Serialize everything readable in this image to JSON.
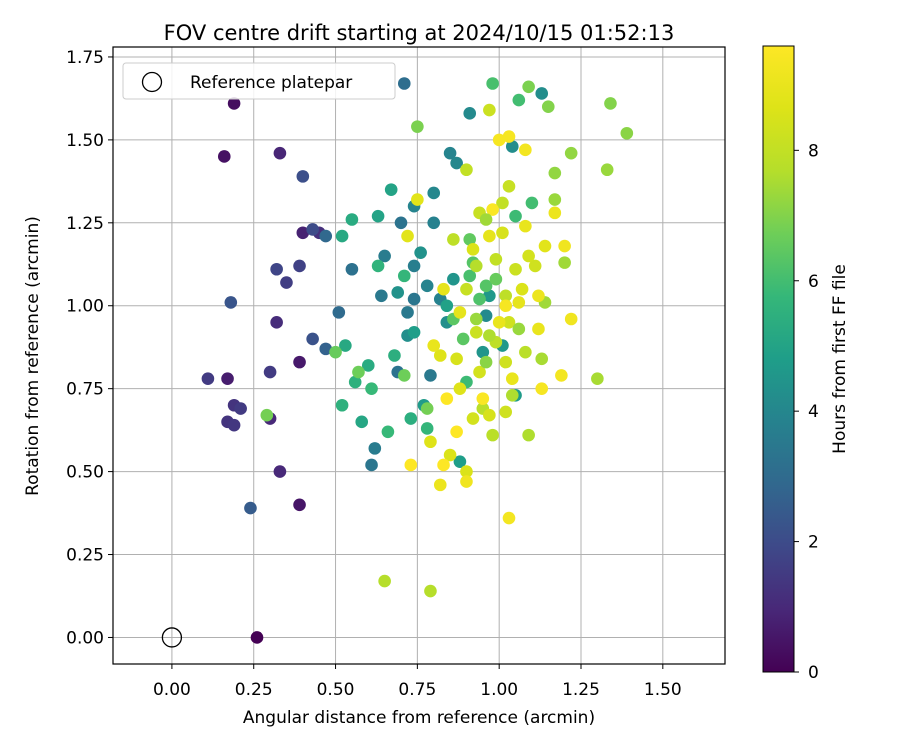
{
  "chart_data": {
    "type": "scatter",
    "title": "FOV centre drift starting at 2024/10/15 01:52:13",
    "xlabel": "Angular distance from reference (arcmin)",
    "ylabel": "Rotation from reference (arcmin)",
    "xlim": [
      -0.18,
      1.69
    ],
    "ylim": [
      -0.08,
      1.78
    ],
    "xticks": [
      "0.00",
      "0.25",
      "0.50",
      "0.75",
      "1.00",
      "1.25",
      "1.50"
    ],
    "yticks": [
      "0.00",
      "0.25",
      "0.50",
      "0.75",
      "1.00",
      "1.25",
      "1.50",
      "1.75"
    ],
    "grid": true,
    "legend": {
      "placement": "top-left",
      "entries": [
        "Reference platepar"
      ]
    },
    "reference_point": {
      "x": 0.0,
      "y": 0.0,
      "label": "Reference platepar"
    },
    "colorbar": {
      "label": "Hours from first FF file",
      "ticks": [
        "0",
        "2",
        "4",
        "6",
        "8"
      ],
      "range": [
        0,
        9.6
      ],
      "colormap": "viridis"
    },
    "points": [
      [
        0.26,
        0.0,
        0.0
      ],
      [
        0.19,
        1.61,
        0.3
      ],
      [
        0.16,
        1.45,
        0.4
      ],
      [
        0.39,
        0.4,
        0.5
      ],
      [
        0.39,
        0.83,
        0.6
      ],
      [
        0.17,
        0.78,
        0.7
      ],
      [
        0.4,
        1.22,
        0.8
      ],
      [
        0.33,
        1.46,
        0.9
      ],
      [
        0.3,
        0.66,
        1.0
      ],
      [
        0.33,
        0.5,
        1.0
      ],
      [
        0.32,
        0.95,
        1.1
      ],
      [
        0.45,
        1.22,
        1.2
      ],
      [
        0.17,
        0.65,
        1.3
      ],
      [
        0.19,
        0.7,
        1.3
      ],
      [
        0.19,
        0.64,
        1.4
      ],
      [
        0.21,
        0.69,
        1.5
      ],
      [
        0.11,
        0.78,
        1.5
      ],
      [
        0.3,
        0.8,
        1.5
      ],
      [
        0.35,
        1.07,
        1.6
      ],
      [
        0.39,
        1.12,
        1.7
      ],
      [
        0.32,
        1.11,
        1.8
      ],
      [
        0.43,
        1.23,
        2.0
      ],
      [
        0.4,
        1.39,
        2.1
      ],
      [
        0.43,
        0.9,
        2.2
      ],
      [
        0.18,
        1.01,
        2.3
      ],
      [
        0.24,
        0.39,
        2.5
      ],
      [
        0.47,
        0.87,
        2.7
      ],
      [
        0.47,
        1.21,
        2.9
      ],
      [
        0.51,
        0.98,
        3.0
      ],
      [
        0.71,
        1.67,
        3.1
      ],
      [
        0.55,
        1.11,
        3.2
      ],
      [
        0.7,
        1.25,
        3.3
      ],
      [
        0.69,
        0.8,
        3.3
      ],
      [
        0.74,
        1.02,
        3.4
      ],
      [
        0.61,
        0.52,
        3.4
      ],
      [
        0.64,
        1.03,
        3.5
      ],
      [
        0.72,
        0.98,
        3.5
      ],
      [
        0.79,
        0.79,
        3.5
      ],
      [
        0.65,
        1.15,
        3.6
      ],
      [
        0.62,
        0.57,
        3.6
      ],
      [
        0.74,
        1.12,
        3.7
      ],
      [
        0.82,
        1.02,
        3.8
      ],
      [
        0.8,
        1.25,
        3.8
      ],
      [
        0.78,
        1.06,
        3.9
      ],
      [
        0.74,
        1.3,
        3.9
      ],
      [
        0.85,
        1.46,
        3.9
      ],
      [
        0.8,
        1.34,
        4.0
      ],
      [
        0.87,
        1.43,
        4.0
      ],
      [
        0.91,
        1.58,
        4.1
      ],
      [
        0.96,
        0.97,
        4.1
      ],
      [
        1.04,
        1.48,
        4.2
      ],
      [
        1.13,
        1.64,
        4.2
      ],
      [
        0.72,
        0.91,
        4.3
      ],
      [
        0.84,
        0.95,
        4.3
      ],
      [
        0.69,
        1.04,
        4.4
      ],
      [
        0.76,
        1.16,
        4.4
      ],
      [
        0.86,
        1.08,
        4.5
      ],
      [
        0.95,
        0.86,
        4.5
      ],
      [
        0.97,
        1.03,
        4.6
      ],
      [
        1.01,
        0.88,
        4.6
      ],
      [
        1.05,
        0.73,
        4.7
      ],
      [
        0.77,
        0.7,
        4.7
      ],
      [
        0.88,
        0.53,
        4.8
      ],
      [
        0.74,
        0.92,
        4.8
      ],
      [
        0.84,
        1.0,
        4.9
      ],
      [
        0.63,
        1.27,
        5.0
      ],
      [
        0.67,
        1.35,
        5.0
      ],
      [
        0.58,
        0.65,
        5.1
      ],
      [
        0.52,
        1.21,
        5.2
      ],
      [
        0.53,
        0.88,
        5.2
      ],
      [
        0.55,
        1.26,
        5.3
      ],
      [
        0.6,
        0.82,
        5.3
      ],
      [
        0.73,
        0.66,
        5.4
      ],
      [
        0.68,
        0.85,
        5.4
      ],
      [
        0.52,
        0.7,
        5.5
      ],
      [
        0.56,
        0.77,
        5.5
      ],
      [
        0.63,
        1.12,
        5.6
      ],
      [
        0.71,
        1.09,
        5.7
      ],
      [
        0.78,
        0.63,
        5.7
      ],
      [
        0.61,
        0.75,
        5.8
      ],
      [
        0.66,
        0.62,
        5.8
      ],
      [
        0.9,
        0.77,
        5.9
      ],
      [
        1.05,
        1.27,
        5.9
      ],
      [
        1.1,
        1.31,
        6.0
      ],
      [
        1.06,
        1.62,
        6.0
      ],
      [
        0.98,
        1.67,
        6.1
      ],
      [
        0.91,
        1.09,
        6.1
      ],
      [
        0.94,
        1.02,
        6.2
      ],
      [
        0.92,
        1.13,
        6.3
      ],
      [
        0.96,
        1.06,
        6.3
      ],
      [
        0.86,
        0.96,
        6.4
      ],
      [
        0.89,
        0.9,
        6.4
      ],
      [
        0.91,
        1.2,
        6.5
      ],
      [
        0.5,
        0.86,
        6.6
      ],
      [
        0.57,
        0.8,
        6.7
      ],
      [
        0.71,
        0.79,
        6.7
      ],
      [
        0.29,
        0.67,
        6.8
      ],
      [
        0.78,
        0.69,
        6.8
      ],
      [
        0.75,
        1.54,
        6.9
      ],
      [
        1.09,
        1.66,
        6.9
      ],
      [
        1.15,
        1.6,
        7.0
      ],
      [
        1.34,
        1.61,
        7.0
      ],
      [
        1.39,
        1.52,
        7.1
      ],
      [
        1.22,
        1.46,
        7.2
      ],
      [
        1.17,
        1.4,
        7.2
      ],
      [
        1.17,
        1.32,
        7.3
      ],
      [
        1.33,
        1.41,
        7.3
      ],
      [
        1.2,
        1.13,
        7.4
      ],
      [
        1.14,
        1.01,
        7.4
      ],
      [
        1.13,
        0.84,
        7.5
      ],
      [
        1.3,
        0.78,
        7.5
      ],
      [
        1.09,
        0.61,
        7.6
      ],
      [
        1.04,
        0.73,
        7.6
      ],
      [
        0.65,
        0.17,
        7.7
      ],
      [
        0.79,
        0.14,
        7.7
      ],
      [
        0.98,
        0.61,
        7.8
      ],
      [
        0.95,
        0.69,
        7.8
      ],
      [
        0.99,
        0.89,
        7.9
      ],
      [
        1.02,
        1.03,
        7.9
      ],
      [
        0.9,
        1.41,
        8.0
      ],
      [
        1.01,
        1.31,
        8.0
      ],
      [
        1.03,
        1.36,
        8.1
      ],
      [
        0.94,
        1.28,
        8.1
      ],
      [
        0.97,
        1.59,
        8.2
      ],
      [
        1.05,
        1.11,
        8.2
      ],
      [
        1.11,
        1.12,
        8.3
      ],
      [
        1.03,
        0.95,
        8.3
      ],
      [
        0.92,
        0.66,
        8.4
      ],
      [
        0.94,
        0.8,
        8.4
      ],
      [
        0.97,
        0.67,
        8.5
      ],
      [
        0.87,
        0.84,
        8.5
      ],
      [
        0.85,
        0.55,
        8.6
      ],
      [
        0.9,
        0.5,
        8.6
      ],
      [
        0.79,
        0.59,
        8.7
      ],
      [
        0.82,
        0.85,
        8.7
      ],
      [
        0.72,
        1.21,
        8.8
      ],
      [
        0.75,
        1.32,
        8.8
      ],
      [
        0.83,
        1.05,
        8.9
      ],
      [
        0.88,
        0.98,
        8.9
      ],
      [
        1.0,
        0.95,
        9.0
      ],
      [
        1.08,
        1.24,
        9.0
      ],
      [
        1.12,
        1.03,
        9.1
      ],
      [
        1.17,
        1.28,
        9.1
      ],
      [
        1.2,
        1.18,
        9.2
      ],
      [
        1.22,
        0.96,
        9.2
      ],
      [
        1.19,
        0.79,
        9.3
      ],
      [
        1.08,
        1.47,
        9.3
      ],
      [
        1.0,
        1.5,
        9.4
      ],
      [
        1.03,
        1.51,
        9.4
      ],
      [
        0.98,
        1.29,
        9.5
      ],
      [
        0.95,
        0.72,
        9.5
      ],
      [
        0.87,
        0.62,
        9.6
      ],
      [
        0.83,
        0.52,
        9.6
      ],
      [
        0.73,
        0.52,
        9.6
      ],
      [
        0.84,
        0.72,
        9.6
      ],
      [
        1.03,
        0.36,
        9.3
      ],
      [
        1.13,
        0.75,
        9.4
      ],
      [
        0.9,
        0.47,
        9.2
      ],
      [
        0.82,
        0.46,
        9.1
      ],
      [
        1.02,
        1.0,
        9.4
      ],
      [
        1.09,
        1.15,
        8.4
      ],
      [
        1.02,
        0.83,
        8.3
      ],
      [
        0.97,
        0.91,
        7.6
      ],
      [
        1.06,
        0.93,
        7.3
      ],
      [
        0.93,
        1.12,
        7.7
      ],
      [
        0.96,
        1.26,
        7.4
      ],
      [
        0.99,
        1.14,
        8.0
      ],
      [
        1.07,
        1.05,
        8.6
      ],
      [
        1.12,
        0.93,
        9.0
      ],
      [
        1.14,
        1.18,
        8.8
      ],
      [
        0.88,
        0.75,
        8.7
      ],
      [
        0.93,
        0.92,
        8.2
      ],
      [
        0.99,
        1.08,
        6.6
      ],
      [
        0.86,
        1.2,
        7.9
      ],
      [
        0.8,
        0.88,
        9.0
      ],
      [
        0.9,
        1.05,
        8.1
      ],
      [
        1.01,
        1.22,
        8.5
      ],
      [
        1.06,
        1.01,
        8.9
      ],
      [
        1.04,
        0.78,
        9.0
      ],
      [
        0.96,
        0.83,
        7.1
      ],
      [
        1.08,
        0.86,
        7.8
      ],
      [
        1.02,
        0.68,
        8.3
      ],
      [
        0.93,
        0.96,
        7.3
      ],
      [
        0.92,
        1.17,
        8.6
      ],
      [
        0.97,
        1.21,
        8.9
      ]
    ]
  }
}
